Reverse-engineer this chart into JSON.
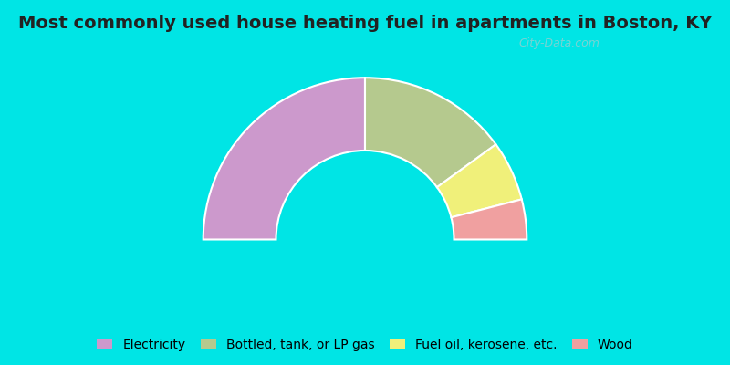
{
  "title": "Most commonly used house heating fuel in apartments in Boston, KY",
  "title_fontsize": 14,
  "background_top": "#00e5e5",
  "background_chart": "#d8edd8",
  "segments": [
    {
      "label": "Electricity",
      "value": 50,
      "color": "#cc99cc"
    },
    {
      "label": "Bottled, tank, or LP gas",
      "value": 30,
      "color": "#b5c98e"
    },
    {
      "label": "Fuel oil, kerosene, etc.",
      "value": 12,
      "color": "#f0f07a"
    },
    {
      "label": "Wood",
      "value": 8,
      "color": "#f0a0a0"
    }
  ],
  "legend_fontsize": 10,
  "watermark": "City-Data.com"
}
